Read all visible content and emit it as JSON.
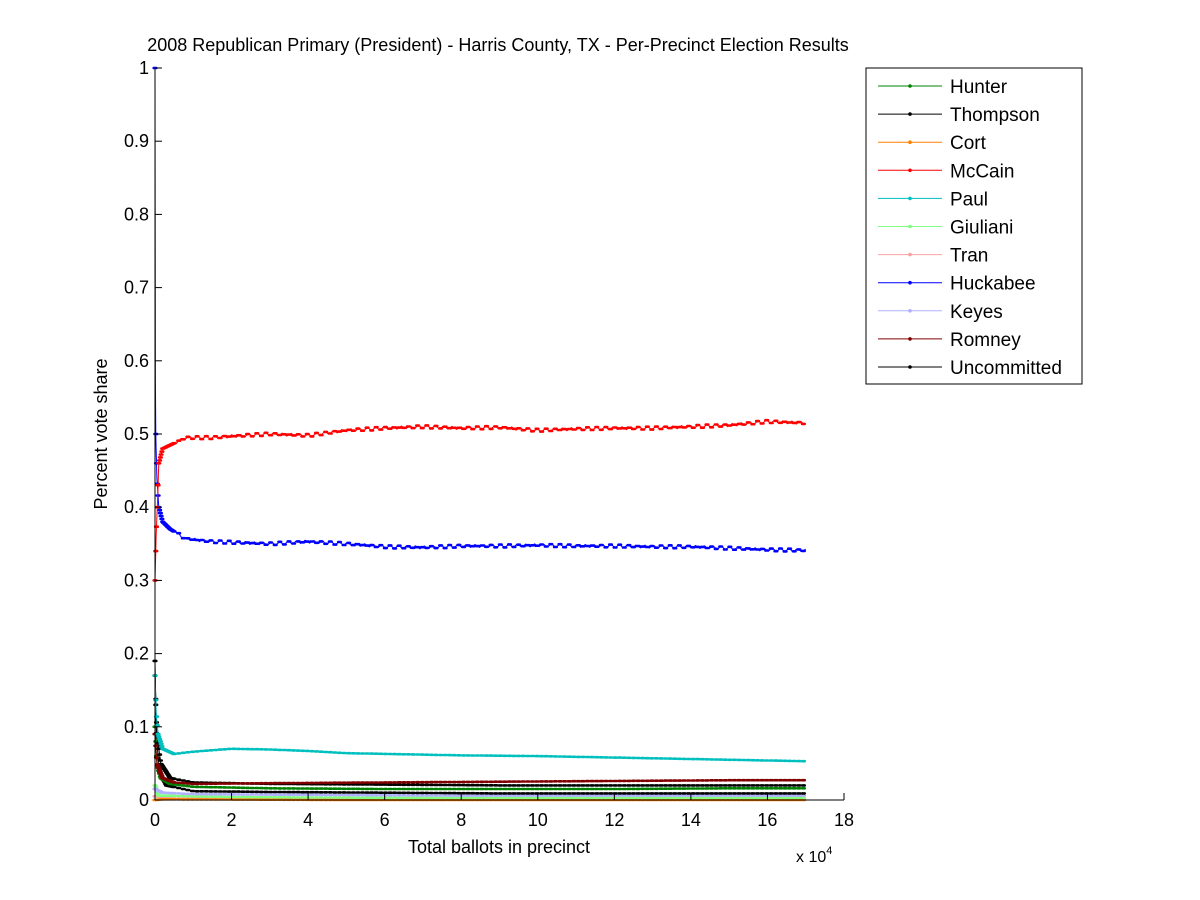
{
  "chart_data": {
    "type": "line",
    "title": "2008 Republican Primary (President) - Harris County, TX - Per-Precinct Election Results",
    "xlabel": "Total ballots in precinct",
    "ylabel": "Percent vote share",
    "x_multiplier_base": "x 10",
    "x_multiplier_exp": "4",
    "xlim": [
      0,
      18
    ],
    "ylim": [
      0,
      1
    ],
    "xticks": [
      0,
      2,
      4,
      6,
      8,
      10,
      12,
      14,
      16,
      18
    ],
    "xtick_labels": [
      "0",
      "2",
      "4",
      "6",
      "8",
      "10",
      "12",
      "14",
      "16",
      "18"
    ],
    "yticks": [
      0,
      0.1,
      0.2,
      0.3,
      0.4,
      0.5,
      0.6,
      0.7,
      0.8,
      0.9,
      1
    ],
    "ytick_labels": [
      "0",
      "0.1",
      "0.2",
      "0.3",
      "0.4",
      "0.5",
      "0.6",
      "0.7",
      "0.8",
      "0.9",
      "1"
    ],
    "grid": false,
    "legend_position": "top-right-outside",
    "x_end": 17,
    "series": [
      {
        "name": "Hunter",
        "color": "#008000",
        "points": [
          [
            0,
            0.1
          ],
          [
            0.05,
            0.05
          ],
          [
            0.15,
            0.03
          ],
          [
            0.4,
            0.022
          ],
          [
            1,
            0.018
          ],
          [
            3,
            0.016
          ],
          [
            6,
            0.015
          ],
          [
            9,
            0.015
          ],
          [
            12,
            0.015
          ],
          [
            15,
            0.016
          ],
          [
            17,
            0.016
          ]
        ]
      },
      {
        "name": "Thompson",
        "color": "#000000",
        "points": [
          [
            0,
            0.17
          ],
          [
            0.05,
            0.09
          ],
          [
            0.15,
            0.05
          ],
          [
            0.4,
            0.03
          ],
          [
            1,
            0.024
          ],
          [
            3,
            0.022
          ],
          [
            6,
            0.021
          ],
          [
            9,
            0.02
          ],
          [
            12,
            0.02
          ],
          [
            15,
            0.02
          ],
          [
            17,
            0.02
          ]
        ]
      },
      {
        "name": "Cort",
        "color": "#ff8000",
        "points": [
          [
            0,
            0
          ],
          [
            0.2,
            0.001
          ],
          [
            5,
            0.0
          ],
          [
            10,
            0.0
          ],
          [
            17,
            0.0
          ]
        ]
      },
      {
        "name": "McCain",
        "color": "#ff0000",
        "points": [
          [
            0,
            0.3
          ],
          [
            0.03,
            0.36
          ],
          [
            0.06,
            0.4
          ],
          [
            0.1,
            0.46
          ],
          [
            0.2,
            0.48
          ],
          [
            0.4,
            0.485
          ],
          [
            0.8,
            0.495
          ],
          [
            1.5,
            0.495
          ],
          [
            2,
            0.497
          ],
          [
            3,
            0.5
          ],
          [
            4,
            0.498
          ],
          [
            5,
            0.505
          ],
          [
            6,
            0.508
          ],
          [
            7,
            0.51
          ],
          [
            8,
            0.508
          ],
          [
            9,
            0.509
          ],
          [
            10,
            0.505
          ],
          [
            11,
            0.507
          ],
          [
            12,
            0.508
          ],
          [
            13,
            0.508
          ],
          [
            14,
            0.51
          ],
          [
            15,
            0.512
          ],
          [
            16,
            0.517
          ],
          [
            17,
            0.515
          ]
        ]
      },
      {
        "name": "Paul",
        "color": "#00bfbf",
        "points": [
          [
            0,
            0.17
          ],
          [
            0.03,
            0.12
          ],
          [
            0.08,
            0.09
          ],
          [
            0.2,
            0.07
          ],
          [
            0.5,
            0.063
          ],
          [
            1,
            0.066
          ],
          [
            2,
            0.07
          ],
          [
            3,
            0.069
          ],
          [
            4,
            0.067
          ],
          [
            5,
            0.064
          ],
          [
            6,
            0.063
          ],
          [
            8,
            0.061
          ],
          [
            10,
            0.06
          ],
          [
            12,
            0.058
          ],
          [
            14,
            0.056
          ],
          [
            16,
            0.054
          ],
          [
            17,
            0.053
          ]
        ]
      },
      {
        "name": "Giuliani",
        "color": "#80ff80",
        "points": [
          [
            0,
            0.02
          ],
          [
            0.1,
            0.006
          ],
          [
            2,
            0.004
          ],
          [
            6,
            0.003
          ],
          [
            10,
            0.003
          ],
          [
            14,
            0.003
          ],
          [
            17,
            0.003
          ]
        ]
      },
      {
        "name": "Tran",
        "color": "#ffa0a0",
        "points": [
          [
            0,
            0.005
          ],
          [
            0.5,
            0.002
          ],
          [
            6,
            0.001
          ],
          [
            12,
            0.001
          ],
          [
            17,
            0.001
          ]
        ]
      },
      {
        "name": "Huckabee",
        "color": "#0000ff",
        "points": [
          [
            0,
            1.0
          ],
          [
            0.005,
            0.63
          ],
          [
            0.01,
            0.57
          ],
          [
            0.02,
            0.5
          ],
          [
            0.05,
            0.44
          ],
          [
            0.1,
            0.4
          ],
          [
            0.2,
            0.38
          ],
          [
            0.4,
            0.37
          ],
          [
            0.8,
            0.357
          ],
          [
            1.5,
            0.353
          ],
          [
            2,
            0.352
          ],
          [
            3,
            0.35
          ],
          [
            4,
            0.353
          ],
          [
            5,
            0.35
          ],
          [
            6,
            0.346
          ],
          [
            7,
            0.345
          ],
          [
            8,
            0.347
          ],
          [
            9,
            0.347
          ],
          [
            10,
            0.348
          ],
          [
            11,
            0.347
          ],
          [
            12,
            0.347
          ],
          [
            13,
            0.346
          ],
          [
            14,
            0.346
          ],
          [
            15,
            0.344
          ],
          [
            16,
            0.342
          ],
          [
            17,
            0.341
          ]
        ]
      },
      {
        "name": "Keyes",
        "color": "#b0b0ff",
        "points": [
          [
            0,
            0.015
          ],
          [
            0.2,
            0.01
          ],
          [
            1,
            0.008
          ],
          [
            4,
            0.007
          ],
          [
            8,
            0.006
          ],
          [
            12,
            0.006
          ],
          [
            17,
            0.006
          ]
        ]
      },
      {
        "name": "Romney",
        "color": "#800000",
        "points": [
          [
            0,
            0.09
          ],
          [
            0.05,
            0.05
          ],
          [
            0.2,
            0.03
          ],
          [
            0.5,
            0.024
          ],
          [
            1,
            0.022
          ],
          [
            3,
            0.023
          ],
          [
            6,
            0.024
          ],
          [
            9,
            0.025
          ],
          [
            12,
            0.026
          ],
          [
            15,
            0.027
          ],
          [
            17,
            0.027
          ]
        ]
      },
      {
        "name": "Uncommitted",
        "color": "#000000",
        "points": [
          [
            0,
            0.19
          ],
          [
            0.03,
            0.1
          ],
          [
            0.1,
            0.04
          ],
          [
            0.3,
            0.02
          ],
          [
            1,
            0.012
          ],
          [
            3,
            0.011
          ],
          [
            6,
            0.01
          ],
          [
            9,
            0.009
          ],
          [
            12,
            0.009
          ],
          [
            15,
            0.009
          ],
          [
            17,
            0.009
          ]
        ]
      }
    ]
  }
}
